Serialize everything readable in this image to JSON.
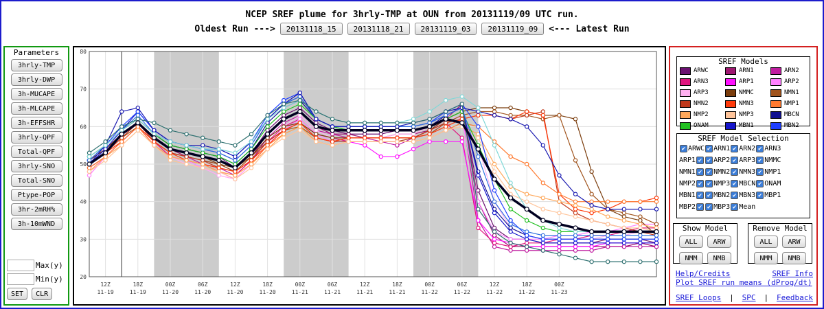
{
  "header": {
    "title": "NCEP SREF plume for 3hrly-TMP at OUN from 20131119/09 UTC run.",
    "oldest_label": "Oldest Run --->",
    "latest_label": "<--- Latest Run",
    "runs": [
      "20131118_15",
      "20131118_21",
      "20131119_03",
      "20131119_09"
    ]
  },
  "parameters": {
    "title": "Parameters",
    "buttons": [
      "3hrly-TMP",
      "3hrly-DWP",
      "3h-MUCAPE",
      "3h-MLCAPE",
      "3h-EFFSHR",
      "3hrly-QPF",
      "Total-QPF",
      "3hrly-SNO",
      "Total-SNO",
      "Ptype-POP",
      "3hr-2mRH%",
      "3h-10mWND"
    ],
    "max_label": "Max(y)",
    "min_label": "Min(y)",
    "set_label": "SET",
    "clr_label": "CLR"
  },
  "models": {
    "title": "SREF Models",
    "items": [
      {
        "name": "ARWC",
        "color": "#6b1070"
      },
      {
        "name": "ARN1",
        "color": "#9e1770"
      },
      {
        "name": "ARN2",
        "color": "#c01da0"
      },
      {
        "name": "ARN3",
        "color": "#e0157f"
      },
      {
        "name": "ARP1",
        "color": "#ff10ff"
      },
      {
        "name": "ARP2",
        "color": "#ff80ff"
      },
      {
        "name": "ARP3",
        "color": "#ffb0f0"
      },
      {
        "name": "NMMC",
        "color": "#7b3d0d"
      },
      {
        "name": "NMN1",
        "color": "#a0531c"
      },
      {
        "name": "NMN2",
        "color": "#c0381a"
      },
      {
        "name": "NMN3",
        "color": "#ff3a0a"
      },
      {
        "name": "NMP1",
        "color": "#ff7a30"
      },
      {
        "name": "NMP2",
        "color": "#ffa85a"
      },
      {
        "name": "NMP3",
        "color": "#ffc49a"
      },
      {
        "name": "MBCN",
        "color": "#101090"
      },
      {
        "name": "ONAM",
        "color": "#20c020"
      },
      {
        "name": "MBN1",
        "color": "#1515cc"
      },
      {
        "name": "MBN2",
        "color": "#2040ff"
      },
      {
        "name": "MBN3",
        "color": "#3070e0"
      },
      {
        "name": "MBP1",
        "color": "#1818b0"
      },
      {
        "name": "MBP2",
        "color": "#80d8d8"
      },
      {
        "name": "MBP3",
        "color": "#2e7070"
      },
      {
        "name": "Mean",
        "color": "#000020"
      }
    ]
  },
  "selection": {
    "title": "SREF Model Selection",
    "rows": [
      [
        "ARWC",
        "ARN1",
        "ARN2",
        "ARN3"
      ],
      [
        "ARP1",
        "ARP2",
        "ARP3",
        "NMMC"
      ],
      [
        "NMN1",
        "NMN2",
        "NMN3",
        "NMP1"
      ],
      [
        "NMP2",
        "NMP3",
        "MBCN",
        "ONAM"
      ],
      [
        "MBN1",
        "MBN2",
        "MBN3",
        "MBP1"
      ],
      [
        "MBP2",
        "MBP3",
        "Mean"
      ]
    ]
  },
  "show_model": {
    "title": "Show Model",
    "buttons": [
      "ALL",
      "ARW",
      "NMM",
      "NMB"
    ]
  },
  "remove_model": {
    "title": "Remove Model",
    "buttons": [
      "ALL",
      "ARW",
      "NMM",
      "NMB"
    ]
  },
  "links": {
    "help": "Help/Credits",
    "sref_info": "SREF Info",
    "plot_means": "Plot SREF run means (dProg/dt)",
    "loops": "SREF Loops",
    "spc": "SPC",
    "feedback": "Feedback",
    "sep": "|"
  },
  "chart_data": {
    "type": "line",
    "title": "",
    "xlabel": "",
    "ylabel": "",
    "ylim": [
      20,
      80
    ],
    "yticks": [
      20,
      30,
      40,
      50,
      60,
      70,
      80
    ],
    "grid": true,
    "x_ticks": [
      {
        "hour": "12Z",
        "date": "11-19"
      },
      {
        "hour": "18Z",
        "date": "11-19"
      },
      {
        "hour": "00Z",
        "date": "11-20"
      },
      {
        "hour": "06Z",
        "date": "11-20"
      },
      {
        "hour": "12Z",
        "date": "11-20"
      },
      {
        "hour": "18Z",
        "date": "11-20"
      },
      {
        "hour": "00Z",
        "date": "11-21"
      },
      {
        "hour": "06Z",
        "date": "11-21"
      },
      {
        "hour": "12Z",
        "date": "11-21"
      },
      {
        "hour": "18Z",
        "date": "11-21"
      },
      {
        "hour": "00Z",
        "date": "11-22"
      },
      {
        "hour": "06Z",
        "date": "11-22"
      },
      {
        "hour": "12Z",
        "date": "11-22"
      },
      {
        "hour": "18Z",
        "date": "11-22"
      },
      {
        "hour": "00Z",
        "date": "11-23"
      }
    ],
    "x_hours": [
      9,
      12,
      15,
      18,
      21,
      24,
      27,
      30,
      33,
      36,
      39,
      42,
      45,
      48,
      51,
      54,
      57,
      60,
      63,
      66,
      69,
      72,
      75,
      78,
      81,
      84,
      87,
      90,
      93,
      96,
      99,
      102,
      105,
      108,
      111,
      114
    ],
    "night_bands": [
      [
        21,
        33
      ],
      [
        45,
        57
      ],
      [
        69,
        81
      ]
    ],
    "current_marker_hour": 15,
    "series": [
      {
        "name": "ARWC",
        "color": "#6b1070",
        "values": [
          52,
          55,
          59,
          62,
          58,
          55,
          54,
          53,
          52,
          49,
          53,
          59,
          63,
          65,
          61,
          59,
          58,
          58,
          58,
          59,
          59,
          60,
          63,
          65,
          43,
          33,
          30,
          30,
          29,
          29,
          29,
          29,
          30,
          30,
          30,
          29
        ]
      },
      {
        "name": "ARN1",
        "color": "#9e1770",
        "values": [
          51,
          54,
          58,
          61,
          57,
          54,
          52,
          51,
          50,
          48,
          52,
          58,
          62,
          64,
          60,
          58,
          58,
          57,
          57,
          58,
          58,
          59,
          62,
          66,
          40,
          31,
          28,
          28,
          28,
          28,
          28,
          28,
          28,
          28,
          29,
          28
        ]
      },
      {
        "name": "ARN2",
        "color": "#c01da0",
        "values": [
          50,
          53,
          57,
          61,
          56,
          53,
          52,
          50,
          49,
          47,
          51,
          57,
          61,
          63,
          59,
          58,
          57,
          57,
          56,
          55,
          57,
          59,
          62,
          64,
          35,
          28,
          27,
          27,
          27,
          27,
          27,
          27,
          28,
          28,
          28,
          28
        ]
      },
      {
        "name": "ARN3",
        "color": "#e0157f",
        "values": [
          49,
          52,
          56,
          60,
          56,
          52,
          51,
          50,
          48,
          47,
          51,
          56,
          60,
          62,
          58,
          57,
          56,
          56,
          56,
          56,
          57,
          59,
          61,
          57,
          33,
          29,
          28,
          29,
          29,
          30,
          30,
          31,
          31,
          32,
          33,
          33
        ]
      },
      {
        "name": "ARP1",
        "color": "#ff10ff",
        "values": [
          48,
          52,
          56,
          60,
          55,
          52,
          51,
          50,
          48,
          46,
          50,
          55,
          59,
          61,
          57,
          56,
          56,
          55,
          52,
          52,
          54,
          56,
          56,
          56,
          35,
          30,
          29,
          28,
          28,
          28,
          28,
          28,
          29,
          29,
          29,
          29
        ]
      },
      {
        "name": "ARP2",
        "color": "#ff80ff",
        "values": [
          47,
          52,
          56,
          60,
          55,
          52,
          51,
          49,
          47,
          46,
          50,
          55,
          59,
          62,
          58,
          56,
          56,
          56,
          56,
          56,
          57,
          58,
          61,
          62,
          40,
          32,
          30,
          30,
          30,
          31,
          31,
          32,
          32,
          33,
          34,
          34
        ]
      },
      {
        "name": "ARP3",
        "color": "#ffb0f0",
        "values": [
          48,
          52,
          56,
          60,
          55,
          52,
          50,
          49,
          47,
          46,
          50,
          55,
          60,
          63,
          59,
          57,
          57,
          57,
          57,
          58,
          58,
          60,
          63,
          62,
          55,
          40,
          33,
          31,
          30,
          30,
          30,
          30,
          31,
          31,
          32,
          32
        ]
      },
      {
        "name": "NMMC",
        "color": "#7b3d0d",
        "values": [
          51,
          54,
          58,
          61,
          57,
          54,
          53,
          52,
          50,
          49,
          52,
          57,
          60,
          61,
          58,
          57,
          57,
          57,
          57,
          57,
          57,
          59,
          62,
          64,
          65,
          65,
          65,
          64,
          63,
          63,
          62,
          48,
          38,
          36,
          35,
          31
        ]
      },
      {
        "name": "NMN1",
        "color": "#a0531c",
        "values": [
          50,
          53,
          57,
          60,
          56,
          53,
          52,
          51,
          50,
          48,
          52,
          56,
          59,
          60,
          57,
          56,
          56,
          56,
          56,
          56,
          57,
          58,
          61,
          63,
          64,
          64,
          63,
          63,
          62,
          63,
          51,
          42,
          38,
          37,
          36,
          34
        ]
      },
      {
        "name": "NMN2",
        "color": "#c0381a",
        "values": [
          50,
          53,
          57,
          61,
          56,
          53,
          52,
          51,
          49,
          48,
          51,
          56,
          59,
          61,
          57,
          56,
          57,
          57,
          57,
          57,
          57,
          59,
          61,
          62,
          63,
          63,
          62,
          63,
          64,
          40,
          37,
          35,
          34,
          33,
          32,
          31
        ]
      },
      {
        "name": "NMN3",
        "color": "#ff3a0a",
        "values": [
          50,
          53,
          56,
          60,
          56,
          53,
          51,
          50,
          49,
          48,
          51,
          55,
          59,
          61,
          57,
          56,
          57,
          57,
          57,
          57,
          57,
          58,
          60,
          62,
          63,
          63,
          62,
          64,
          63,
          42,
          38,
          37,
          38,
          40,
          40,
          41
        ]
      },
      {
        "name": "NMP1",
        "color": "#ff7a30",
        "values": [
          49,
          52,
          56,
          60,
          55,
          52,
          51,
          50,
          48,
          47,
          50,
          55,
          58,
          60,
          56,
          55,
          56,
          56,
          56,
          56,
          56,
          57,
          59,
          61,
          60,
          56,
          52,
          50,
          45,
          42,
          40,
          40,
          40,
          40,
          40,
          40
        ]
      },
      {
        "name": "NMP2",
        "color": "#ffa85a",
        "values": [
          48,
          52,
          55,
          59,
          55,
          52,
          51,
          50,
          48,
          47,
          50,
          54,
          58,
          60,
          56,
          55,
          56,
          56,
          56,
          56,
          56,
          57,
          59,
          60,
          58,
          50,
          44,
          42,
          41,
          40,
          39,
          38,
          36,
          35,
          34,
          33
        ]
      },
      {
        "name": "NMP3",
        "color": "#ffc49a",
        "values": [
          48,
          51,
          55,
          59,
          55,
          51,
          50,
          49,
          48,
          46,
          49,
          54,
          57,
          59,
          56,
          55,
          56,
          56,
          56,
          56,
          56,
          57,
          59,
          60,
          57,
          48,
          42,
          40,
          38,
          37,
          36,
          35,
          34,
          33,
          33,
          32
        ]
      },
      {
        "name": "MBCN",
        "color": "#101090",
        "values": [
          51,
          55,
          59,
          62,
          58,
          55,
          54,
          53,
          52,
          50,
          54,
          61,
          65,
          67,
          62,
          60,
          59,
          59,
          59,
          59,
          59,
          60,
          63,
          65,
          48,
          38,
          33,
          31,
          30,
          30,
          30,
          30,
          30,
          30,
          30,
          30
        ]
      },
      {
        "name": "ONAM",
        "color": "#20c020",
        "values": [
          52,
          55,
          59,
          62,
          58,
          55,
          54,
          53,
          52,
          50,
          54,
          60,
          64,
          66,
          62,
          60,
          59,
          59,
          59,
          59,
          59,
          60,
          62,
          64,
          55,
          46,
          38,
          35,
          33,
          32,
          32,
          32,
          32,
          32,
          32,
          32
        ]
      },
      {
        "name": "MBN1",
        "color": "#1515cc",
        "values": [
          50,
          54,
          59,
          64,
          59,
          56,
          55,
          54,
          53,
          51,
          55,
          62,
          66,
          68,
          62,
          60,
          60,
          60,
          60,
          60,
          60,
          61,
          63,
          65,
          47,
          37,
          32,
          30,
          29,
          29,
          29,
          29,
          29,
          29,
          29,
          29
        ]
      },
      {
        "name": "MBN2",
        "color": "#2040ff",
        "values": [
          51,
          55,
          60,
          64,
          59,
          56,
          55,
          54,
          54,
          52,
          56,
          63,
          67,
          69,
          62,
          60,
          60,
          60,
          60,
          60,
          60,
          61,
          64,
          66,
          60,
          43,
          35,
          31,
          30,
          30,
          30,
          30,
          30,
          30,
          30,
          30
        ]
      },
      {
        "name": "MBN3",
        "color": "#3070e0",
        "values": [
          51,
          55,
          59,
          63,
          58,
          56,
          55,
          54,
          53,
          51,
          55,
          62,
          66,
          68,
          62,
          60,
          60,
          60,
          60,
          60,
          60,
          61,
          63,
          65,
          52,
          40,
          34,
          32,
          31,
          31,
          31,
          31,
          31,
          31,
          31,
          31
        ]
      },
      {
        "name": "MBP1",
        "color": "#1818b0",
        "values": [
          50,
          55,
          64,
          65,
          59,
          56,
          55,
          55,
          54,
          52,
          56,
          62,
          66,
          69,
          62,
          60,
          60,
          60,
          60,
          60,
          61,
          62,
          64,
          65,
          64,
          63,
          62,
          60,
          55,
          47,
          42,
          39,
          38,
          38,
          38,
          38
        ]
      },
      {
        "name": "MBP2",
        "color": "#80d8d8",
        "values": [
          52,
          55,
          59,
          62,
          58,
          56,
          55,
          54,
          54,
          53,
          56,
          62,
          65,
          67,
          64,
          62,
          61,
          61,
          61,
          61,
          62,
          64,
          67,
          68,
          65,
          55,
          45,
          38,
          35,
          33,
          32,
          32,
          32,
          32,
          32,
          32
        ]
      },
      {
        "name": "MBP3",
        "color": "#2e7070",
        "values": [
          53,
          56,
          60,
          62,
          61,
          59,
          58,
          57,
          56,
          55,
          58,
          63,
          66,
          67,
          64,
          62,
          61,
          61,
          61,
          61,
          61,
          62,
          64,
          66,
          38,
          32,
          29,
          28,
          27,
          26,
          25,
          24,
          24,
          24,
          24,
          24
        ]
      },
      {
        "name": "Mean",
        "color": "#000020",
        "values": [
          50,
          53,
          58,
          61,
          57,
          54,
          53,
          52,
          51,
          49,
          53,
          58,
          62,
          64,
          60,
          59,
          59,
          59,
          59,
          59,
          59,
          60,
          62,
          61,
          54,
          46,
          41,
          38,
          35,
          34,
          33,
          32,
          32,
          32,
          32,
          32
        ]
      }
    ]
  }
}
